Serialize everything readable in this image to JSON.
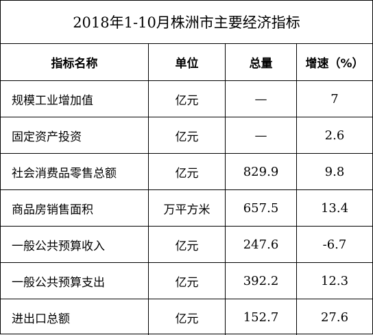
{
  "title": "2018年1-10月株洲市主要经济指标",
  "headers": {
    "name": "指标名称",
    "unit": "单位",
    "total": "总量",
    "speed": "增速（%）"
  },
  "rows": [
    {
      "name": "规模工业增加值",
      "unit": "亿元",
      "total": "—",
      "speed": "7"
    },
    {
      "name": "固定资产投资",
      "unit": "亿元",
      "total": "—",
      "speed": "2.6"
    },
    {
      "name": "社会消费品零售总额",
      "unit": "亿元",
      "total": "829.9",
      "speed": "9.8"
    },
    {
      "name": "商品房销售面积",
      "unit": "万平方米",
      "total": "657.5",
      "speed": "13.4"
    },
    {
      "name": "一般公共预算收入",
      "unit": "亿元",
      "total": "247.6",
      "speed": "-6.7"
    },
    {
      "name": "一般公共预算支出",
      "unit": "亿元",
      "total": "392.2",
      "speed": "12.3"
    },
    {
      "name": "进出口总额",
      "unit": "亿元",
      "total": "152.7",
      "speed": "27.6"
    }
  ]
}
